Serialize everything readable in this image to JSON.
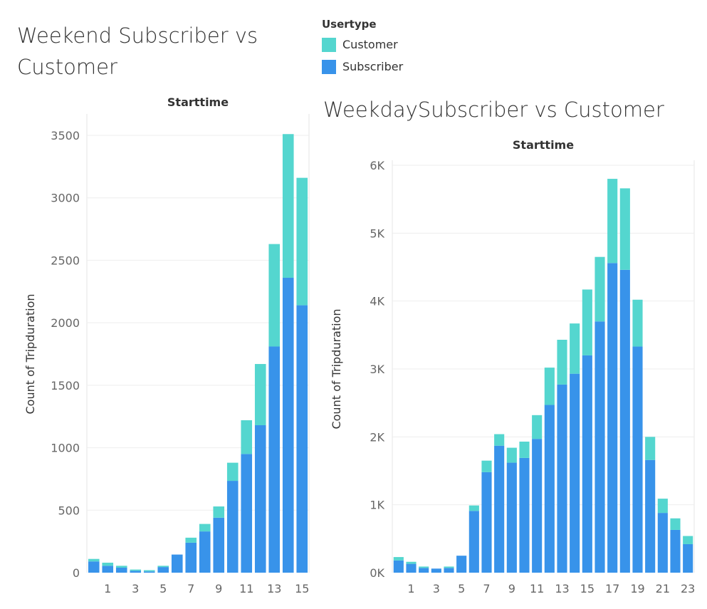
{
  "legend": {
    "title": "Usertype",
    "items": [
      {
        "label": "Customer",
        "color": "#54d6cf"
      },
      {
        "label": "Subscriber",
        "color": "#3893ea"
      }
    ]
  },
  "colors": {
    "customer": "#54d6cf",
    "subscriber": "#3893ea",
    "grid": "#eeeeee",
    "tick": "#666666"
  },
  "chart_data": [
    {
      "type": "bar",
      "stacked": true,
      "title": "Weekend Subscriber vs Customer",
      "header": "Starttime",
      "xlabel": "",
      "ylabel": "Count of Tripduration",
      "categories": [
        0,
        1,
        2,
        3,
        4,
        5,
        6,
        7,
        8,
        9,
        10,
        11,
        12,
        13,
        14,
        15
      ],
      "x_tick_labels": [
        "1",
        "3",
        "5",
        "7",
        "9",
        "11",
        "13",
        "15"
      ],
      "y_ticks": [
        0,
        500,
        1000,
        1500,
        2000,
        2500,
        3000,
        3500
      ],
      "y_tick_labels": [
        "0",
        "500",
        "1000",
        "1500",
        "2000",
        "2500",
        "3000",
        "3500"
      ],
      "ylim": [
        0,
        3600
      ],
      "grid": true,
      "series": [
        {
          "name": "Subscriber",
          "values": [
            90,
            55,
            40,
            15,
            10,
            45,
            145,
            240,
            330,
            440,
            735,
            950,
            1180,
            1810,
            2360,
            2140
          ]
        },
        {
          "name": "Customer",
          "values": [
            20,
            25,
            15,
            10,
            10,
            10,
            0,
            40,
            60,
            90,
            145,
            270,
            490,
            820,
            1150,
            1020
          ]
        }
      ]
    },
    {
      "type": "bar",
      "stacked": true,
      "title": "WeekdaySubscriber vs Customer",
      "header": "Starttime",
      "xlabel": "",
      "ylabel": "Count of Tripduration",
      "categories": [
        0,
        1,
        2,
        3,
        4,
        5,
        6,
        7,
        8,
        9,
        10,
        11,
        12,
        13,
        14,
        15,
        16,
        17,
        18,
        19,
        20,
        21,
        22,
        23
      ],
      "x_tick_labels": [
        "1",
        "3",
        "5",
        "7",
        "9",
        "11",
        "13",
        "15",
        "17",
        "19",
        "21",
        "23"
      ],
      "y_ticks": [
        0,
        1000,
        2000,
        3000,
        4000,
        5000,
        6000
      ],
      "y_tick_labels": [
        "0K",
        "1K",
        "2K",
        "3K",
        "4K",
        "5K",
        "6K"
      ],
      "ylim": [
        0,
        6000
      ],
      "grid": true,
      "series": [
        {
          "name": "Subscriber",
          "values": [
            180,
            130,
            70,
            60,
            70,
            250,
            910,
            1480,
            1870,
            1620,
            1690,
            1970,
            2470,
            2770,
            2930,
            3200,
            3700,
            4560,
            4460,
            3330,
            1660,
            880,
            630,
            420
          ]
        },
        {
          "name": "Customer",
          "values": [
            50,
            30,
            20,
            0,
            20,
            0,
            80,
            170,
            170,
            220,
            240,
            350,
            550,
            660,
            740,
            970,
            950,
            1240,
            1200,
            690,
            340,
            210,
            170,
            120
          ]
        }
      ]
    }
  ]
}
